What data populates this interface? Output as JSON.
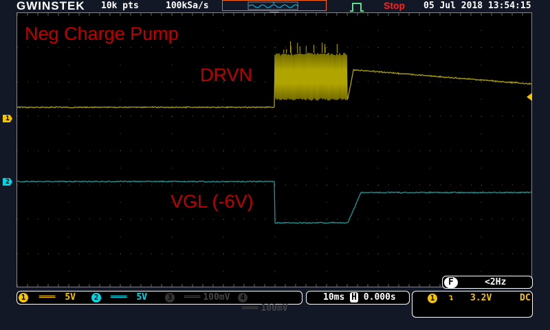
{
  "header": {
    "brand": "GWINSTEK",
    "record_length": "10k pts",
    "sample_rate": "100kSa/s",
    "trigger_status": "Stop",
    "datetime": "05 Jul 2018 13:54:15"
  },
  "annotations": {
    "title": "Neg Charge Pump",
    "ch1_label": "DRVN",
    "ch2_label": "VGL (-6V)"
  },
  "channels": [
    {
      "id": "1",
      "coupling": "DC",
      "scale": "5V",
      "color": "#f5c400",
      "active": true
    },
    {
      "id": "2",
      "coupling": "DC",
      "scale": "5V",
      "color": "#00d8e8",
      "active": true
    },
    {
      "id": "3",
      "scale": "100mV",
      "color": "#444444",
      "active": false
    },
    {
      "id": "4",
      "scale": "100mV",
      "color": "#444444",
      "active": false
    }
  ],
  "timebase": {
    "scale": "10ms",
    "position": "0.000s",
    "h_icon": "H"
  },
  "trigger": {
    "source": "1",
    "slope": "falling",
    "level": "3.2V",
    "coupling": "DC",
    "freq_icon": "F",
    "frequency": "<2Hz"
  },
  "colors": {
    "ch1_trace": "#b0a400",
    "ch2_trace": "#1a9a9a",
    "accent": "#ff5a1f",
    "label": "#c00000"
  }
}
